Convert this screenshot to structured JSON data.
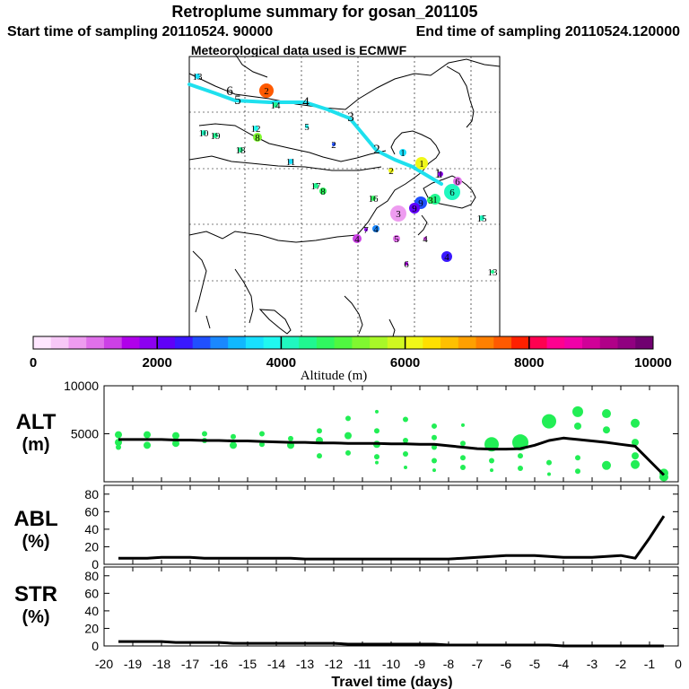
{
  "header": {
    "title": "Retroplume summary for gosan_201105",
    "start_label": "Start time of sampling 20110524. 90000",
    "end_label": "End time of sampling 20110524.120000",
    "met_label": "Meteorological data used is ECMWF"
  },
  "colorbar": {
    "title": "Altitude (m)",
    "ticks": [
      "0",
      "2000",
      "4000",
      "6000",
      "8000",
      "10000"
    ],
    "range": [
      0,
      10000
    ],
    "colors": [
      "#ffe6ff",
      "#f7c8f7",
      "#ee9cf0",
      "#e070ea",
      "#cc40e6",
      "#b000ea",
      "#8c00f0",
      "#6000f8",
      "#3a18ff",
      "#2050ff",
      "#1a88ff",
      "#10b8ff",
      "#18e0ff",
      "#20f8f0",
      "#20f8c0",
      "#20f890",
      "#30f860",
      "#50f840",
      "#80f830",
      "#a8f828",
      "#d0f820",
      "#f0f818",
      "#ffe000",
      "#ffc000",
      "#ffa000",
      "#ff8000",
      "#ff5a00",
      "#ff2000",
      "#ff0050",
      "#ff0090",
      "#f000a8",
      "#d00098",
      "#b00088",
      "#900080",
      "#700070"
    ]
  },
  "map": {
    "trajectory_labels": [
      "1",
      "2",
      "3",
      "4",
      "5",
      "6"
    ],
    "cluster_labels": [
      {
        "t": "1",
        "v": 6000
      },
      {
        "t": "1",
        "v": 3500
      },
      {
        "t": "1",
        "v": 1800
      },
      {
        "t": "1",
        "v": 4500
      },
      {
        "t": "2",
        "v": 7500
      },
      {
        "t": "2",
        "v": 6100
      },
      {
        "t": "3",
        "v": 700
      },
      {
        "t": "3",
        "v": 4600
      },
      {
        "t": "4",
        "v": 2900
      },
      {
        "t": "4",
        "v": 1200
      },
      {
        "t": "4",
        "v": 1200
      },
      {
        "t": "5",
        "v": 3800
      },
      {
        "t": "5",
        "v": 1000
      },
      {
        "t": "6",
        "v": 4000
      },
      {
        "t": "6",
        "v": 1000
      },
      {
        "t": "6",
        "v": 1500
      },
      {
        "t": "7",
        "v": 1800
      },
      {
        "t": "8",
        "v": 5200
      },
      {
        "t": "8",
        "v": 4600
      },
      {
        "t": "9",
        "v": 2700
      },
      {
        "t": "9",
        "v": 2000
      },
      {
        "t": "10",
        "v": 4200
      },
      {
        "t": "11",
        "v": 3700
      },
      {
        "t": "12",
        "v": 3900
      },
      {
        "t": "13",
        "v": 3700
      },
      {
        "t": "13",
        "v": 4300
      },
      {
        "t": "14",
        "v": 4500
      },
      {
        "t": "15",
        "v": 4000
      },
      {
        "t": "16",
        "v": 4600
      },
      {
        "t": "17",
        "v": 4300
      },
      {
        "t": "18",
        "v": 4400
      },
      {
        "t": "19",
        "v": 4500
      },
      {
        "t": "2",
        "v": 2600
      },
      {
        "t": "4",
        "v": 2400
      }
    ]
  },
  "chart_data": [
    {
      "type": "line",
      "panel": "ALT",
      "title": "ALT",
      "ylabel": "(m)",
      "xlabel": "Travel time (days)",
      "xlim": [
        -20,
        0
      ],
      "ylim": [
        0,
        10000
      ],
      "yticks": [
        "5000",
        "10000"
      ],
      "x": [
        -19.5,
        -19,
        -18.5,
        -18,
        -17.5,
        -17,
        -16.5,
        -16,
        -15.5,
        -15,
        -14.5,
        -14,
        -13.5,
        -13,
        -12.5,
        -12,
        -11.5,
        -11,
        -10.5,
        -10,
        -9.5,
        -9,
        -8.5,
        -8,
        -7.5,
        -7,
        -6.5,
        -6,
        -5.5,
        -5,
        -4.5,
        -4,
        -3.5,
        -3,
        -2.5,
        -2,
        -1.5,
        -1,
        -0.5
      ],
      "series": [
        {
          "name": "mean altitude",
          "values": [
            4400,
            4400,
            4400,
            4400,
            4350,
            4350,
            4300,
            4300,
            4250,
            4250,
            4200,
            4150,
            4100,
            4100,
            4050,
            4050,
            4000,
            4000,
            4000,
            3950,
            3950,
            3900,
            3900,
            3750,
            3600,
            3450,
            3400,
            3400,
            3450,
            3800,
            4300,
            4550,
            4400,
            4250,
            4100,
            3900,
            3700,
            2200,
            700
          ]
        }
      ],
      "cloud_points": [
        {
          "x": -19.5,
          "y": 4900,
          "s": 4
        },
        {
          "x": -19.5,
          "y": 4100,
          "s": 4
        },
        {
          "x": -19.5,
          "y": 3600,
          "s": 3
        },
        {
          "x": -18.5,
          "y": 4900,
          "s": 4
        },
        {
          "x": -18.5,
          "y": 3800,
          "s": 4
        },
        {
          "x": -17.5,
          "y": 4800,
          "s": 4
        },
        {
          "x": -17.5,
          "y": 4000,
          "s": 4
        },
        {
          "x": -16.5,
          "y": 5000,
          "s": 3
        },
        {
          "x": -16.5,
          "y": 4300,
          "s": 3
        },
        {
          "x": -15.5,
          "y": 4700,
          "s": 3
        },
        {
          "x": -15.5,
          "y": 3800,
          "s": 4
        },
        {
          "x": -14.5,
          "y": 5000,
          "s": 3
        },
        {
          "x": -14.5,
          "y": 3900,
          "s": 3
        },
        {
          "x": -13.5,
          "y": 4500,
          "s": 3
        },
        {
          "x": -13.5,
          "y": 3800,
          "s": 4
        },
        {
          "x": -12.5,
          "y": 5300,
          "s": 3
        },
        {
          "x": -12.5,
          "y": 4300,
          "s": 4
        },
        {
          "x": -12.5,
          "y": 2700,
          "s": 3
        },
        {
          "x": -11.5,
          "y": 6600,
          "s": 3
        },
        {
          "x": -11.5,
          "y": 4800,
          "s": 4
        },
        {
          "x": -11.5,
          "y": 3000,
          "s": 3
        },
        {
          "x": -10.5,
          "y": 7300,
          "s": 2
        },
        {
          "x": -10.5,
          "y": 5300,
          "s": 3
        },
        {
          "x": -10.5,
          "y": 3900,
          "s": 4
        },
        {
          "x": -10.5,
          "y": 2600,
          "s": 3
        },
        {
          "x": -10.5,
          "y": 2000,
          "s": 2
        },
        {
          "x": -9.5,
          "y": 6500,
          "s": 3
        },
        {
          "x": -9.5,
          "y": 4300,
          "s": 3
        },
        {
          "x": -9.5,
          "y": 2900,
          "s": 3
        },
        {
          "x": -9.5,
          "y": 1500,
          "s": 2
        },
        {
          "x": -8.5,
          "y": 5800,
          "s": 3
        },
        {
          "x": -8.5,
          "y": 4600,
          "s": 3
        },
        {
          "x": -8.5,
          "y": 3600,
          "s": 3
        },
        {
          "x": -8.5,
          "y": 2200,
          "s": 3
        },
        {
          "x": -8.5,
          "y": 1200,
          "s": 2
        },
        {
          "x": -7.5,
          "y": 5900,
          "s": 2
        },
        {
          "x": -7.5,
          "y": 4000,
          "s": 3
        },
        {
          "x": -7.5,
          "y": 2500,
          "s": 3
        },
        {
          "x": -7.5,
          "y": 1500,
          "s": 3
        },
        {
          "x": -6.5,
          "y": 3900,
          "s": 8
        },
        {
          "x": -6.5,
          "y": 2200,
          "s": 3
        },
        {
          "x": -6.5,
          "y": 1200,
          "s": 2
        },
        {
          "x": -5.5,
          "y": 4100,
          "s": 9
        },
        {
          "x": -5.5,
          "y": 2700,
          "s": 3
        },
        {
          "x": -5.5,
          "y": 1400,
          "s": 3
        },
        {
          "x": -4.5,
          "y": 6300,
          "s": 8
        },
        {
          "x": -4.5,
          "y": 2000,
          "s": 3
        },
        {
          "x": -4.5,
          "y": 800,
          "s": 2
        },
        {
          "x": -3.5,
          "y": 7300,
          "s": 6
        },
        {
          "x": -3.5,
          "y": 5800,
          "s": 4
        },
        {
          "x": -3.5,
          "y": 2500,
          "s": 3
        },
        {
          "x": -3.5,
          "y": 1100,
          "s": 3
        },
        {
          "x": -2.5,
          "y": 7100,
          "s": 5
        },
        {
          "x": -2.5,
          "y": 5400,
          "s": 4
        },
        {
          "x": -2.5,
          "y": 1700,
          "s": 5
        },
        {
          "x": -1.5,
          "y": 6100,
          "s": 5
        },
        {
          "x": -1.5,
          "y": 4100,
          "s": 4
        },
        {
          "x": -1.5,
          "y": 2700,
          "s": 4
        },
        {
          "x": -1.5,
          "y": 1800,
          "s": 5
        },
        {
          "x": -0.5,
          "y": 900,
          "s": 5
        },
        {
          "x": -0.5,
          "y": 500,
          "s": 5
        }
      ]
    },
    {
      "type": "line",
      "panel": "ABL",
      "title": "ABL",
      "ylabel": "(%)",
      "xlim": [
        -20,
        0
      ],
      "ylim": [
        0,
        90
      ],
      "yticks": [
        "0",
        "20",
        "40",
        "60",
        "80"
      ],
      "x": [
        -19.5,
        -19,
        -18.5,
        -18,
        -17.5,
        -17,
        -16.5,
        -16,
        -15.5,
        -15,
        -14.5,
        -14,
        -13.5,
        -13,
        -12.5,
        -12,
        -11.5,
        -11,
        -10.5,
        -10,
        -9.5,
        -9,
        -8.5,
        -8,
        -7.5,
        -7,
        -6.5,
        -6,
        -5.5,
        -5,
        -4.5,
        -4,
        -3.5,
        -3,
        -2.5,
        -2,
        -1.5,
        -1,
        -0.5
      ],
      "series": [
        {
          "name": "boundary layer fraction",
          "values": [
            7,
            7,
            7,
            8,
            8,
            8,
            7,
            7,
            7,
            7,
            7,
            7,
            7,
            6,
            6,
            6,
            6,
            6,
            6,
            6,
            6,
            6,
            6,
            6,
            7,
            8,
            9,
            10,
            10,
            10,
            9,
            8,
            8,
            8,
            9,
            10,
            7,
            30,
            55
          ]
        }
      ]
    },
    {
      "type": "line",
      "panel": "STR",
      "title": "STR",
      "ylabel": "(%)",
      "xlim": [
        -20,
        0
      ],
      "ylim": [
        0,
        90
      ],
      "yticks": [
        "0",
        "20",
        "40",
        "60",
        "80"
      ],
      "xticks": [
        "-20",
        "-19",
        "-18",
        "-17",
        "-16",
        "-15",
        "-14",
        "-13",
        "-12",
        "-11",
        "-10",
        "-9",
        "-8",
        "-7",
        "-6",
        "-5",
        "-4",
        "-3",
        "-2",
        "-1",
        "0"
      ],
      "x": [
        -19.5,
        -19,
        -18.5,
        -18,
        -17.5,
        -17,
        -16.5,
        -16,
        -15.5,
        -15,
        -14.5,
        -14,
        -13.5,
        -13,
        -12.5,
        -12,
        -11.5,
        -11,
        -10.5,
        -10,
        -9.5,
        -9,
        -8.5,
        -8,
        -7.5,
        -7,
        -6.5,
        -6,
        -5.5,
        -5,
        -4.5,
        -4,
        -3.5,
        -3,
        -2.5,
        -2,
        -1.5,
        -1,
        -0.5
      ],
      "series": [
        {
          "name": "stratospheric fraction",
          "values": [
            5,
            5,
            5,
            5,
            4,
            4,
            4,
            4,
            3,
            3,
            3,
            3,
            3,
            3,
            3,
            3,
            2,
            2,
            2,
            2,
            2,
            2,
            2,
            1,
            1,
            1,
            1,
            1,
            1,
            1,
            1,
            0,
            0,
            0,
            0,
            0,
            0,
            0,
            0
          ]
        }
      ]
    }
  ]
}
